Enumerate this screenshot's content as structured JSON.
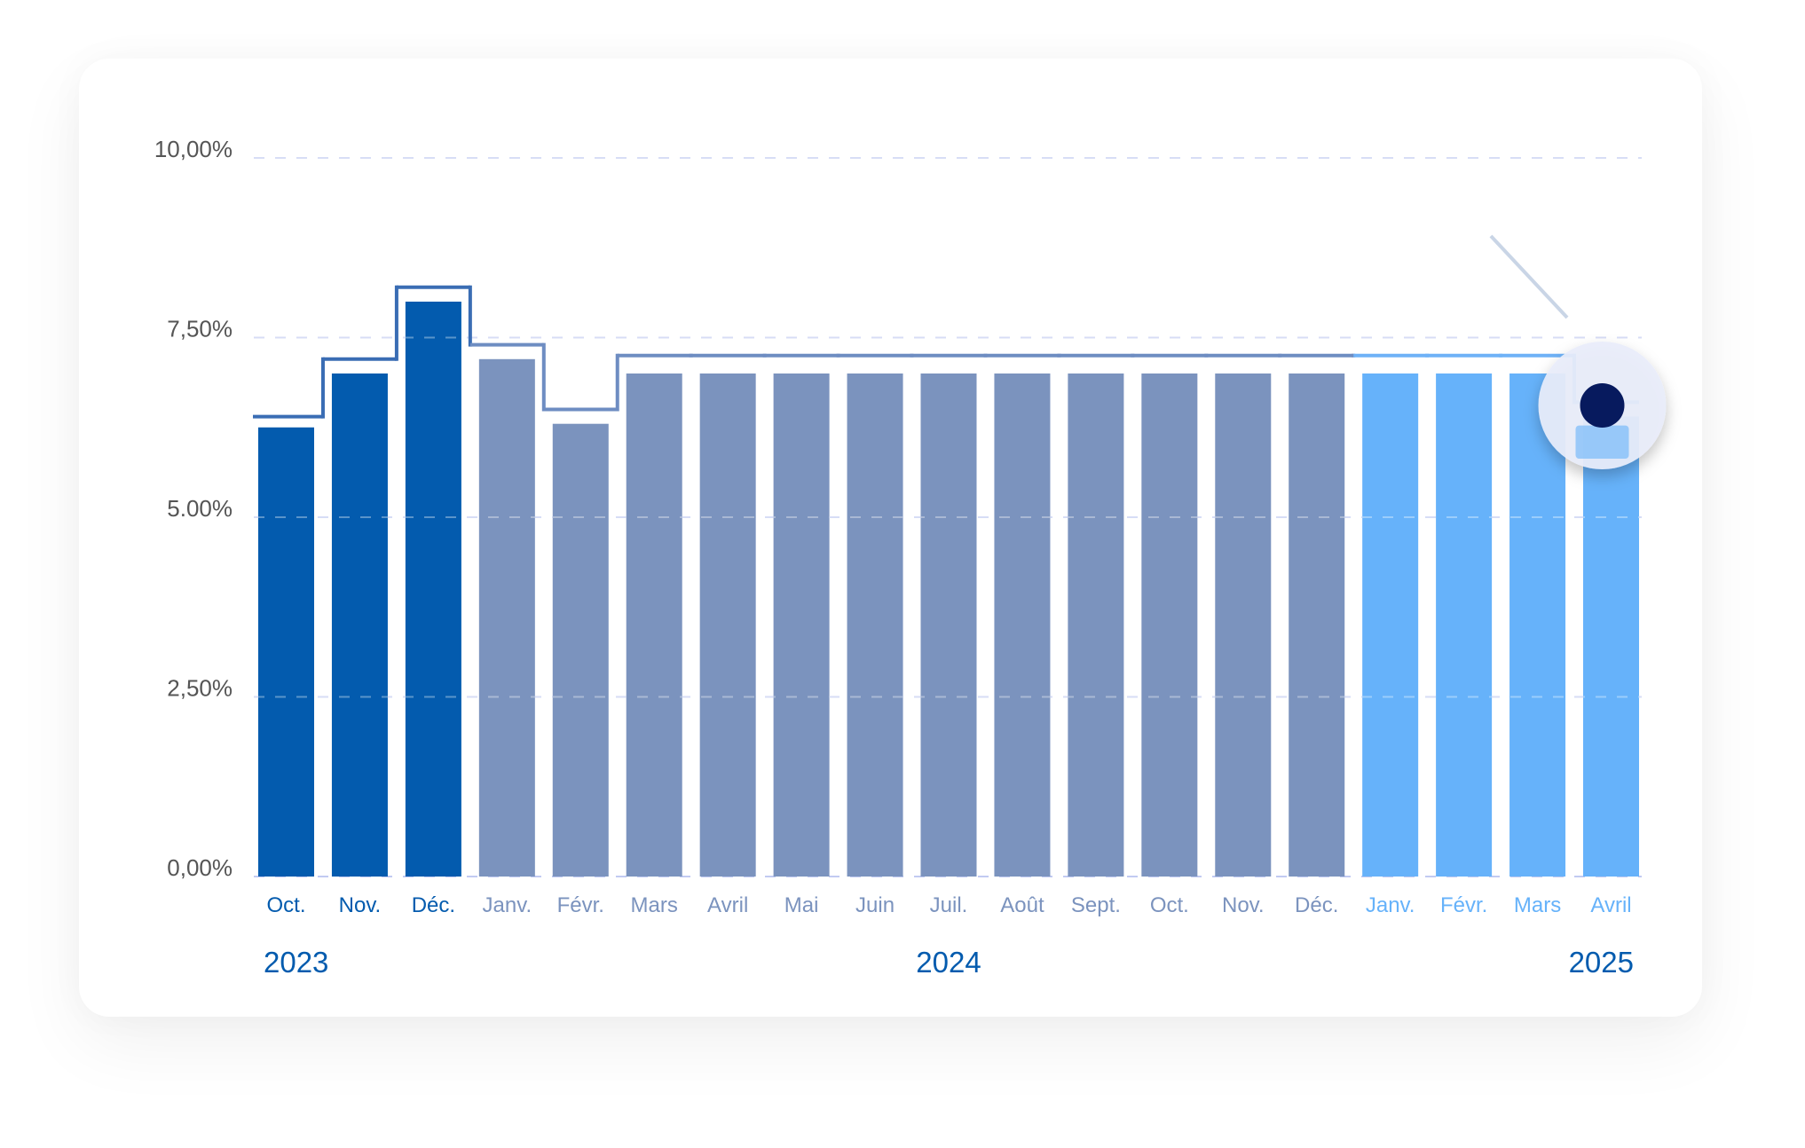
{
  "chart_data": {
    "type": "bar",
    "categories": [
      "Oct.",
      "Nov.",
      "Déc.",
      "Janv.",
      "Févr.",
      "Mars",
      "Avril",
      "Mai",
      "Juin",
      "Juil.",
      "Août",
      "Sept.",
      "Oct.",
      "Nov.",
      "Déc.",
      "Janv.",
      "Févr.",
      "Mars",
      "Avril"
    ],
    "years": [
      {
        "label": "2023",
        "align": "start",
        "index": 0
      },
      {
        "label": "2024",
        "align": "middle",
        "index": 9
      },
      {
        "label": "2025",
        "align": "end",
        "index": 18
      }
    ],
    "groups": [
      0,
      0,
      0,
      1,
      1,
      1,
      1,
      1,
      1,
      1,
      1,
      1,
      1,
      1,
      1,
      2,
      2,
      2,
      2
    ],
    "series": [
      {
        "type": "bar",
        "values": [
          6.25,
          7.0,
          8.0,
          7.2,
          6.3,
          7.0,
          7.0,
          7.0,
          7.0,
          7.0,
          7.0,
          7.0,
          7.0,
          7.0,
          7.0,
          7.0,
          7.0,
          7.0,
          6.4
        ]
      },
      {
        "type": "step-line",
        "values": [
          6.4,
          7.2,
          8.2,
          7.4,
          6.5,
          7.25,
          7.25,
          7.25,
          7.25,
          7.25,
          7.25,
          7.25,
          7.25,
          7.25,
          7.25,
          7.25,
          7.25,
          7.25,
          6.6
        ]
      }
    ],
    "yticks": [
      "0,00%",
      "2,50%",
      "5.00%",
      "7,50%",
      "10,00%"
    ],
    "ytick_values": [
      0,
      2.5,
      5,
      7.5,
      10
    ],
    "ylim": [
      0,
      10
    ],
    "grid": true,
    "highlight": {
      "index": 18,
      "marker": "magnifier-lens"
    },
    "colors": {
      "bar_groups": [
        "#035BAE",
        "#7B93BE",
        "#66B2FA"
      ],
      "line_groups": [
        "#3A6DB4",
        "#6E8DC2",
        "#6FB2F7"
      ],
      "label_groups": [
        "#035BAE",
        "#7B93BE",
        "#66B2FA"
      ],
      "year": "#035BAE",
      "ytick": "#555555",
      "grid": "#C2CBF2",
      "lens_fill": "#E8EDFA",
      "lens_dot": "#071A5E",
      "pointer": "#C9D5E6"
    }
  }
}
